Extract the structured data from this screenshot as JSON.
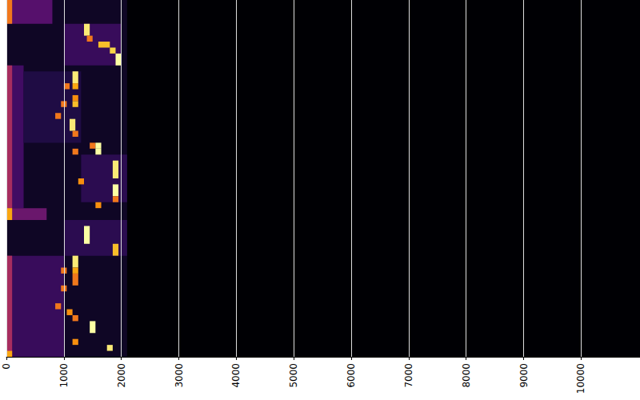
{
  "chart_data": {
    "type": "heatmap",
    "xlim": [
      0,
      11025
    ],
    "xticks": [
      0,
      1000,
      2000,
      3000,
      4000,
      5000,
      6000,
      7000,
      8000,
      9000,
      10000
    ],
    "ylim": [
      0,
      60
    ],
    "grid": true,
    "tick_labels": "x",
    "color_range": [
      0,
      1
    ],
    "cells": [
      [
        0,
        2100,
        0,
        60,
        0.06
      ],
      [
        0,
        800,
        0,
        4,
        0.25
      ],
      [
        0,
        100,
        0,
        4,
        0.7
      ],
      [
        1000,
        2000,
        4,
        11,
        0.18
      ],
      [
        0,
        300,
        11,
        35,
        0.2
      ],
      [
        0,
        100,
        11,
        35,
        0.45
      ],
      [
        300,
        1300,
        12,
        24,
        0.12
      ],
      [
        1300,
        2100,
        26,
        34,
        0.15
      ],
      [
        0,
        700,
        35,
        37,
        0.3
      ],
      [
        0,
        100,
        35,
        37,
        0.8
      ],
      [
        1000,
        2100,
        37,
        43,
        0.15
      ],
      [
        0,
        1000,
        43,
        60,
        0.18
      ],
      [
        0,
        100,
        43,
        60,
        0.45
      ],
      [
        1350,
        1450,
        4,
        6,
        0.95
      ],
      [
        1400,
        1500,
        6,
        7,
        0.7
      ],
      [
        1600,
        1800,
        7,
        8,
        0.85
      ],
      [
        1800,
        1900,
        8,
        9,
        0.9
      ],
      [
        1900,
        2000,
        9,
        11,
        1
      ],
      [
        1150,
        1250,
        12,
        14,
        0.95
      ],
      [
        1000,
        1100,
        14,
        15,
        0.7
      ],
      [
        1150,
        1250,
        14,
        15,
        0.8
      ],
      [
        1150,
        1250,
        16,
        17,
        0.75
      ],
      [
        950,
        1050,
        17,
        18,
        0.7
      ],
      [
        1150,
        1250,
        17,
        18,
        0.85
      ],
      [
        850,
        950,
        19,
        20,
        0.7
      ],
      [
        1100,
        1200,
        20,
        22,
        0.95
      ],
      [
        1150,
        1250,
        22,
        23,
        0.7
      ],
      [
        1450,
        1550,
        24,
        25,
        0.7
      ],
      [
        1550,
        1650,
        24,
        25,
        1
      ],
      [
        1150,
        1250,
        25,
        26,
        0.7
      ],
      [
        1550,
        1650,
        25,
        26,
        1
      ],
      [
        1850,
        1950,
        27,
        30,
        0.95
      ],
      [
        1250,
        1350,
        30,
        31,
        0.75
      ],
      [
        1850,
        1950,
        31,
        33,
        1
      ],
      [
        1850,
        1950,
        33,
        34,
        0.7
      ],
      [
        1550,
        1650,
        34,
        35,
        0.75
      ],
      [
        1350,
        1450,
        38,
        41,
        1
      ],
      [
        1850,
        1950,
        41,
        43,
        0.85
      ],
      [
        1150,
        1250,
        43,
        45,
        0.95
      ],
      [
        950,
        1050,
        45,
        46,
        0.7
      ],
      [
        1150,
        1250,
        45,
        46,
        0.8
      ],
      [
        1150,
        1250,
        46,
        48,
        0.7
      ],
      [
        950,
        1050,
        48,
        49,
        0.7
      ],
      [
        850,
        950,
        51,
        52,
        0.7
      ],
      [
        1050,
        1150,
        52,
        53,
        0.75
      ],
      [
        1150,
        1250,
        53,
        54,
        0.7
      ],
      [
        1450,
        1550,
        54,
        56,
        1
      ],
      [
        1150,
        1250,
        57,
        58,
        0.75
      ],
      [
        1750,
        1850,
        58,
        59,
        0.95
      ],
      [
        0,
        100,
        59,
        60,
        0.8
      ]
    ]
  }
}
